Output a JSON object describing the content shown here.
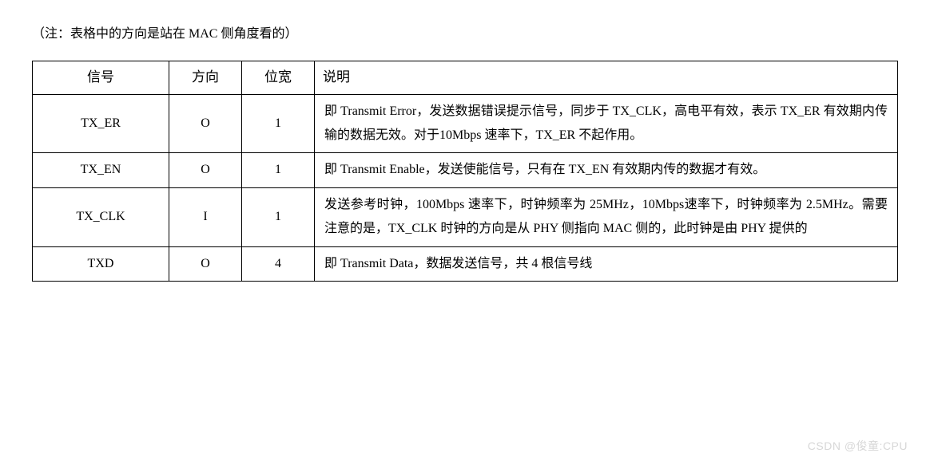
{
  "note": "（注：表格中的方向是站在 MAC 侧角度看的）",
  "table": {
    "headers": {
      "signal": "信号",
      "direction": "方向",
      "bits": "位宽",
      "desc": "说明"
    },
    "rows": [
      {
        "signal": "TX_ER",
        "direction": "O",
        "bits": "1",
        "desc": "即 Transmit Error，发送数据错误提示信号，同步于 TX_CLK，高电平有效，表示 TX_ER 有效期内传输的数据无效。对于10Mbps 速率下，TX_ER 不起作用。"
      },
      {
        "signal": "TX_EN",
        "direction": "O",
        "bits": "1",
        "desc": "即 Transmit Enable，发送使能信号，只有在 TX_EN 有效期内传的数据才有效。"
      },
      {
        "signal": "TX_CLK",
        "direction": "I",
        "bits": "1",
        "desc": "发送参考时钟，100Mbps 速率下，时钟频率为 25MHz，10Mbps速率下，时钟频率为 2.5MHz。需要注意的是，TX_CLK 时钟的方向是从 PHY 侧指向 MAC 侧的，此时钟是由 PHY 提供的"
      },
      {
        "signal": "TXD",
        "direction": "O",
        "bits": "4",
        "desc": "即 Transmit Data，数据发送信号，共 4 根信号线"
      }
    ]
  },
  "watermark": "CSDN @俊童:CPU",
  "style": {
    "background": "#ffffff",
    "text_color": "#000000",
    "border_color": "#000000",
    "watermark_color": "#d7d7d7",
    "font_size_body": 16,
    "font_size_header": 17,
    "line_height": 1.9,
    "col_widths": {
      "signal": 150,
      "direction": 70,
      "bits": 70
    }
  }
}
